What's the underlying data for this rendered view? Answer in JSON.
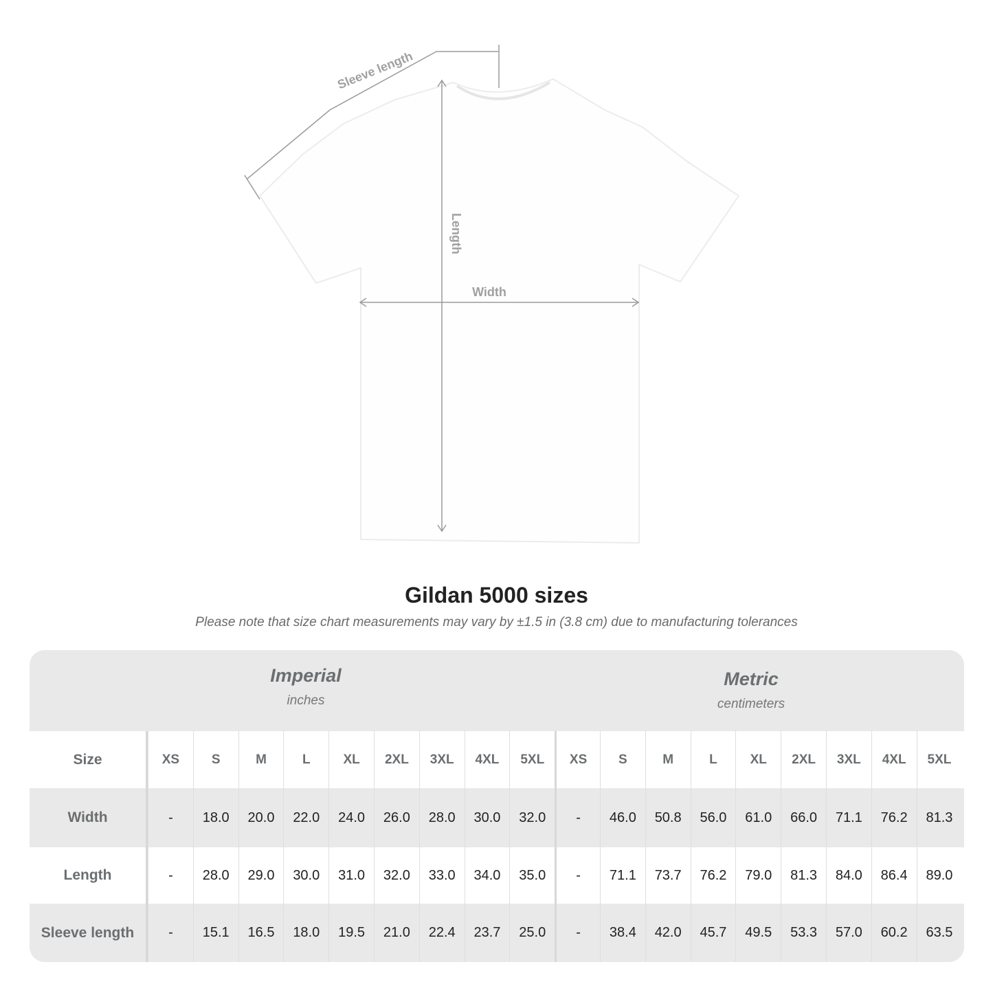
{
  "diagram": {
    "labels": {
      "sleeve": "Sleeve length",
      "length": "Length",
      "width": "Width"
    },
    "shirt_color": "#ffffff",
    "line_color": "#9a9a9a"
  },
  "title": "Gildan 5000 sizes",
  "subtitle": "Please note that size chart measurements may vary by ±1.5 in (3.8 cm) due to manufacturing tolerances",
  "table": {
    "imperial": {
      "name": "Imperial",
      "unit": "inches"
    },
    "metric": {
      "name": "Metric",
      "unit": "centimeters"
    },
    "size_label": "Size",
    "sizes": [
      "XS",
      "S",
      "M",
      "L",
      "XL",
      "2XL",
      "3XL",
      "4XL",
      "5XL"
    ],
    "rows": [
      {
        "label": "Width",
        "imperial": [
          "-",
          "18.0",
          "20.0",
          "22.0",
          "24.0",
          "26.0",
          "28.0",
          "30.0",
          "32.0"
        ],
        "metric": [
          "-",
          "46.0",
          "50.8",
          "56.0",
          "61.0",
          "66.0",
          "71.1",
          "76.2",
          "81.3"
        ]
      },
      {
        "label": "Length",
        "imperial": [
          "-",
          "28.0",
          "29.0",
          "30.0",
          "31.0",
          "32.0",
          "33.0",
          "34.0",
          "35.0"
        ],
        "metric": [
          "-",
          "71.1",
          "73.7",
          "76.2",
          "79.0",
          "81.3",
          "84.0",
          "86.4",
          "89.0"
        ]
      },
      {
        "label": "Sleeve length",
        "imperial": [
          "-",
          "15.1",
          "16.5",
          "18.0",
          "19.5",
          "21.0",
          "22.4",
          "23.7",
          "25.0"
        ],
        "metric": [
          "-",
          "38.4",
          "42.0",
          "45.7",
          "49.5",
          "53.3",
          "57.0",
          "60.2",
          "63.5"
        ]
      }
    ],
    "band_color": "#e9e9e9",
    "label_color": "#6b6e70"
  }
}
